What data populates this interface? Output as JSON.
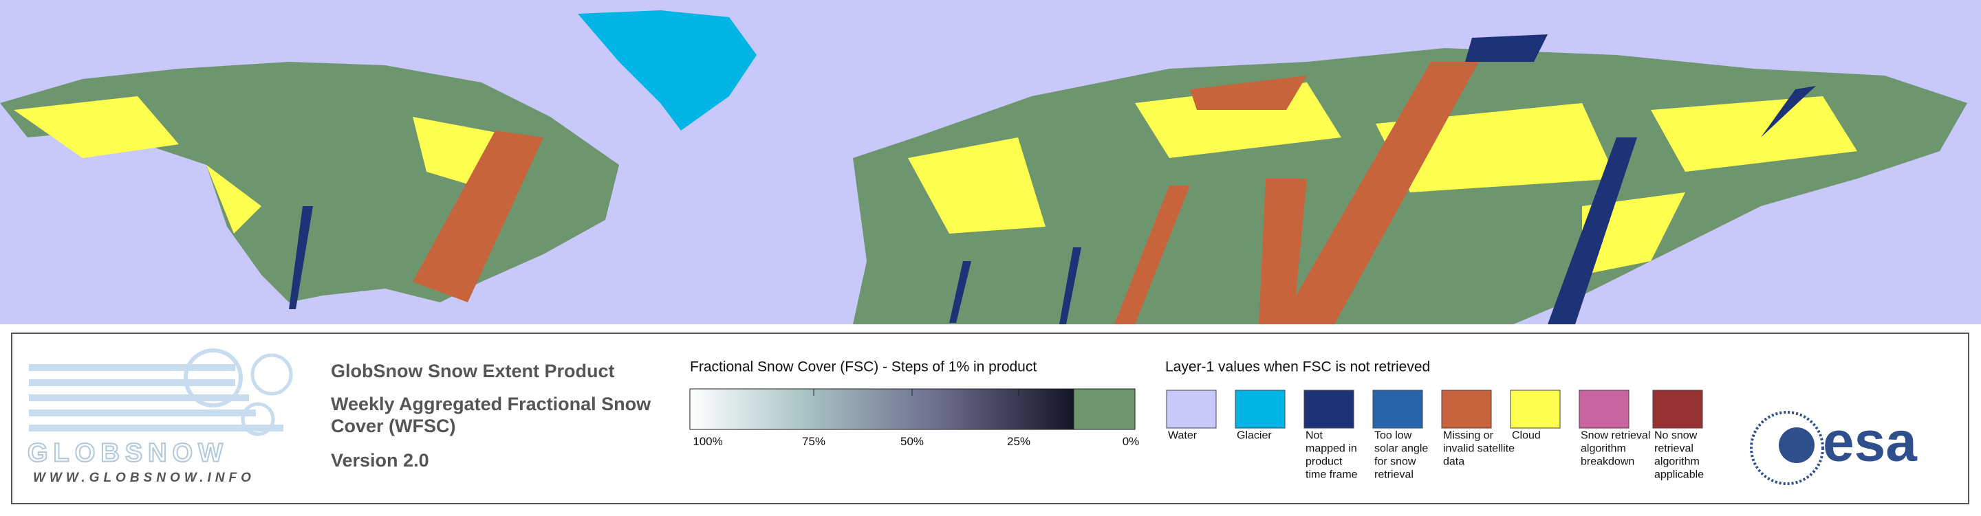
{
  "logo": {
    "name": "GLOBSNOW",
    "url": "WWW.GLOBSNOW.INFO"
  },
  "product": {
    "title": "GlobSnow Snow Extent Product",
    "subtitle_lines": [
      "Weekly Aggregated Fractional Snow",
      "Cover (WFSC)"
    ],
    "version": "Version 2.0"
  },
  "fsc_scale": {
    "title": "Fractional Snow Cover (FSC) - Steps of 1% in product",
    "tick_labels": [
      "100%",
      "75%",
      "50%",
      "25%",
      "0%"
    ]
  },
  "layer1": {
    "title": "Layer-1 values when FSC is not retrieved",
    "items": [
      {
        "color": "#c8c8fa",
        "label_lines": [
          "Water"
        ]
      },
      {
        "color": "#00b4e6",
        "label_lines": [
          "Glacier"
        ]
      },
      {
        "color": "#1e3278",
        "label_lines": [
          "Not",
          "mapped in",
          "product",
          "time frame"
        ]
      },
      {
        "color": "#2864aa",
        "label_lines": [
          "Too low",
          "solar angle",
          "for snow",
          "retrieval"
        ]
      },
      {
        "color": "#c8643c",
        "label_lines": [
          "Missing or",
          "invalid satellite",
          "data"
        ]
      },
      {
        "color": "#ffff50",
        "label_lines": [
          "Cloud"
        ]
      },
      {
        "color": "#c864a0",
        "label_lines": [
          "Snow retrieval",
          "algorithm",
          "breakdown"
        ]
      },
      {
        "color": "#963232",
        "label_lines": [
          "No snow",
          "retrieval",
          "algorithm",
          "applicable"
        ]
      }
    ]
  },
  "agency": "esa"
}
